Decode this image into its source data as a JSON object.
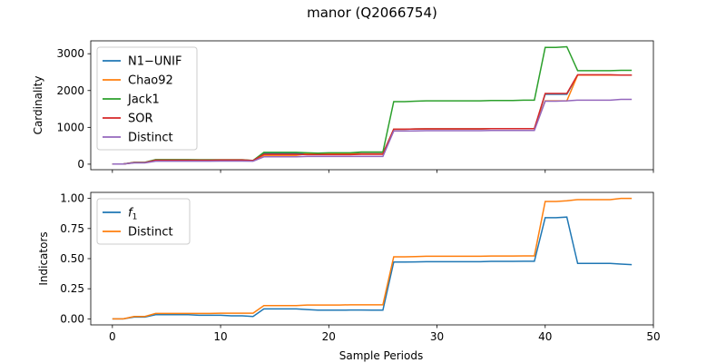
{
  "figure": {
    "title": "manor (Q2066754)"
  },
  "chart_data": [
    {
      "type": "line",
      "ylabel": "Cardinality",
      "xlabel": "",
      "xlim": [
        -2,
        50
      ],
      "ylim": [
        -150,
        3350
      ],
      "xticks": [
        0,
        10,
        20,
        30,
        40,
        50
      ],
      "yticks": [
        0,
        1000,
        2000,
        3000
      ],
      "grid": false,
      "legend_position": "top-left",
      "x": [
        0,
        1,
        2,
        3,
        4,
        5,
        6,
        7,
        8,
        9,
        10,
        11,
        12,
        13,
        14,
        15,
        16,
        17,
        18,
        19,
        20,
        21,
        22,
        23,
        24,
        25,
        26,
        27,
        28,
        29,
        30,
        31,
        32,
        33,
        34,
        35,
        36,
        37,
        38,
        39,
        40,
        41,
        42,
        43,
        44,
        45,
        46,
        47,
        48
      ],
      "series": [
        {
          "name": "N1−UNIF",
          "color": "#1f77b4",
          "values": [
            5,
            5,
            40,
            40,
            100,
            100,
            100,
            100,
            100,
            100,
            110,
            110,
            110,
            100,
            290,
            290,
            290,
            290,
            290,
            290,
            290,
            290,
            290,
            290,
            290,
            290,
            950,
            950,
            955,
            960,
            960,
            960,
            960,
            960,
            960,
            965,
            965,
            965,
            965,
            965,
            1900,
            1900,
            1900,
            2420,
            2420,
            2420,
            2420,
            2420,
            2420
          ]
        },
        {
          "name": "Chao92",
          "color": "#ff7f0e",
          "values": [
            5,
            5,
            40,
            40,
            100,
            100,
            100,
            100,
            100,
            100,
            100,
            100,
            100,
            90,
            240,
            240,
            240,
            240,
            280,
            280,
            280,
            280,
            280,
            280,
            280,
            280,
            950,
            950,
            955,
            960,
            960,
            960,
            960,
            960,
            960,
            965,
            965,
            965,
            965,
            965,
            1720,
            1720,
            1720,
            2420,
            2420,
            2420,
            2420,
            2420,
            2420
          ]
        },
        {
          "name": "Jack1",
          "color": "#2ca02c",
          "values": [
            5,
            5,
            50,
            50,
            125,
            125,
            125,
            125,
            120,
            120,
            120,
            120,
            120,
            100,
            320,
            320,
            320,
            320,
            310,
            300,
            310,
            310,
            310,
            330,
            330,
            330,
            1700,
            1700,
            1710,
            1720,
            1720,
            1720,
            1720,
            1720,
            1720,
            1730,
            1730,
            1730,
            1740,
            1740,
            3170,
            3170,
            3190,
            2540,
            2540,
            2540,
            2540,
            2550,
            2550
          ]
        },
        {
          "name": "SOR",
          "color": "#d62728",
          "values": [
            5,
            5,
            45,
            45,
            110,
            110,
            110,
            110,
            110,
            110,
            115,
            115,
            115,
            100,
            270,
            270,
            270,
            270,
            260,
            260,
            260,
            260,
            260,
            270,
            270,
            270,
            950,
            950,
            955,
            960,
            960,
            960,
            960,
            960,
            960,
            965,
            965,
            965,
            965,
            965,
            1920,
            1920,
            1920,
            2430,
            2430,
            2430,
            2430,
            2420,
            2420
          ]
        },
        {
          "name": "Distinct",
          "color": "#9467bd",
          "values": [
            5,
            5,
            35,
            35,
            80,
            80,
            80,
            80,
            80,
            80,
            85,
            85,
            85,
            80,
            200,
            200,
            200,
            200,
            210,
            210,
            210,
            210,
            210,
            210,
            210,
            210,
            900,
            900,
            905,
            910,
            910,
            910,
            910,
            910,
            910,
            915,
            915,
            915,
            915,
            915,
            1710,
            1710,
            1720,
            1740,
            1740,
            1740,
            1740,
            1760,
            1760
          ]
        }
      ]
    },
    {
      "type": "line",
      "ylabel": "Indicators",
      "xlabel": "Sample Periods",
      "xlim": [
        -2,
        50
      ],
      "ylim": [
        -0.05,
        1.05
      ],
      "xticks": [
        0,
        10,
        20,
        30,
        40,
        50
      ],
      "yticks": [
        "0.00",
        "0.25",
        "0.50",
        "0.75",
        "1.00"
      ],
      "grid": false,
      "legend_position": "top-left",
      "x": [
        0,
        1,
        2,
        3,
        4,
        5,
        6,
        7,
        8,
        9,
        10,
        11,
        12,
        13,
        14,
        15,
        16,
        17,
        18,
        19,
        20,
        21,
        22,
        23,
        24,
        25,
        26,
        27,
        28,
        29,
        30,
        31,
        32,
        33,
        34,
        35,
        36,
        37,
        38,
        39,
        40,
        41,
        42,
        43,
        44,
        45,
        46,
        47,
        48
      ],
      "series": [
        {
          "name": "f1",
          "color": "#1f77b4",
          "values": [
            0.0,
            0.0,
            0.015,
            0.015,
            0.035,
            0.035,
            0.035,
            0.035,
            0.03,
            0.03,
            0.03,
            0.025,
            0.025,
            0.02,
            0.083,
            0.083,
            0.083,
            0.083,
            0.077,
            0.072,
            0.072,
            0.072,
            0.073,
            0.073,
            0.072,
            0.072,
            0.472,
            0.472,
            0.473,
            0.475,
            0.475,
            0.475,
            0.475,
            0.475,
            0.475,
            0.477,
            0.477,
            0.477,
            0.478,
            0.478,
            0.84,
            0.84,
            0.845,
            0.46,
            0.46,
            0.46,
            0.46,
            0.455,
            0.45
          ]
        },
        {
          "name": "Distinct",
          "color": "#ff7f0e",
          "values": [
            0.0,
            0.0,
            0.02,
            0.02,
            0.045,
            0.045,
            0.045,
            0.045,
            0.045,
            0.045,
            0.047,
            0.047,
            0.047,
            0.047,
            0.11,
            0.11,
            0.11,
            0.11,
            0.115,
            0.115,
            0.115,
            0.115,
            0.117,
            0.117,
            0.117,
            0.117,
            0.515,
            0.515,
            0.517,
            0.52,
            0.52,
            0.52,
            0.52,
            0.52,
            0.52,
            0.522,
            0.522,
            0.522,
            0.523,
            0.523,
            0.975,
            0.975,
            0.98,
            0.99,
            0.99,
            0.99,
            0.99,
            1.0,
            1.0
          ]
        }
      ]
    }
  ]
}
